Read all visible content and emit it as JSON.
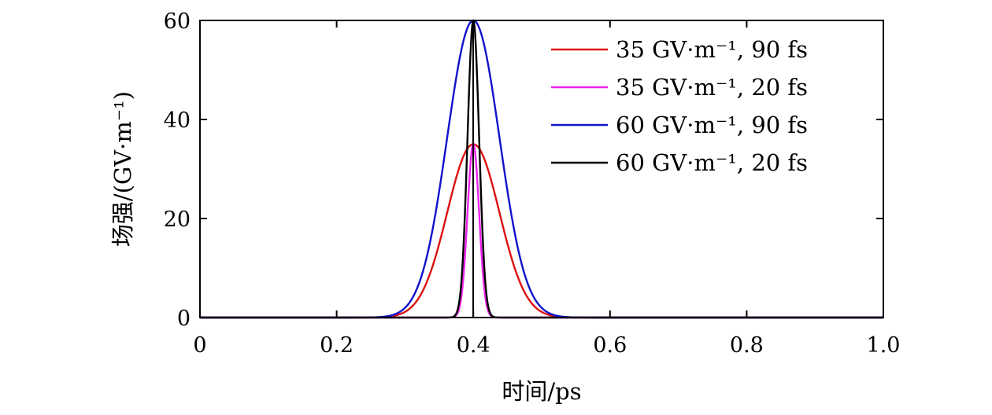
{
  "chart_data": {
    "type": "line",
    "title": "",
    "xlabel": "时间/ps",
    "ylabel": "场强/(GV·m⁻¹)",
    "xlim": [
      0,
      1.0
    ],
    "ylim": [
      0,
      60
    ],
    "xticks": [
      0,
      0.2,
      0.4,
      0.6,
      0.8,
      1.0
    ],
    "xtick_labels": [
      "0",
      "0.2",
      "0.4",
      "0.6",
      "0.8",
      "1.0"
    ],
    "yticks": [
      0,
      20,
      40,
      60
    ],
    "ytick_labels": [
      "0",
      "20",
      "40",
      "60"
    ],
    "grid": false,
    "legend_position": "top-right",
    "center_ps": 0.4,
    "series": [
      {
        "name": "35 GV·m⁻¹, 90 fs",
        "amplitude": 35,
        "fwhm_fs": 90,
        "color": "#dd1111"
      },
      {
        "name": "35 GV·m⁻¹, 20 fs",
        "amplitude": 35,
        "fwhm_fs": 20,
        "color": "#ee22ee"
      },
      {
        "name": "60 GV·m⁻¹, 90 fs",
        "amplitude": 60,
        "fwhm_fs": 90,
        "color": "#1111cc"
      },
      {
        "name": "60 GV·m⁻¹, 20 fs",
        "amplitude": 60,
        "fwhm_fs": 20,
        "color": "#000000"
      }
    ]
  }
}
